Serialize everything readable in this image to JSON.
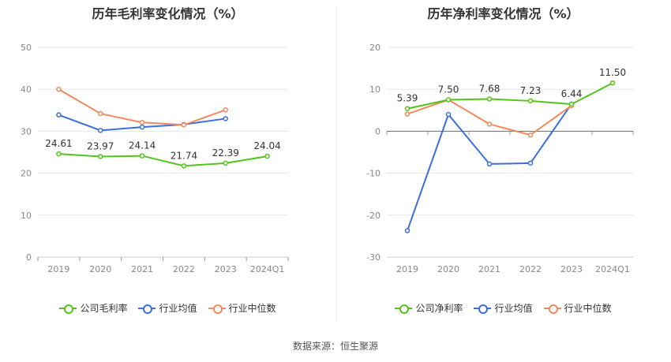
{
  "source_label": "数据来源：恒生聚源",
  "colors": {
    "company": "#52c41a",
    "industry_avg": "#3b6fe0",
    "industry_median": "#f08a5d"
  },
  "chart_data": [
    {
      "type": "line",
      "title": "历年毛利率变化情况（%）",
      "categories": [
        "2019",
        "2020",
        "2021",
        "2022",
        "2023",
        "2024Q1"
      ],
      "ylim": [
        0,
        50
      ],
      "yticks": [
        0,
        10,
        20,
        30,
        40,
        50
      ],
      "grid": true,
      "legend_position": "bottom",
      "series": [
        {
          "name": "公司毛利率",
          "key": "company",
          "values": [
            24.61,
            23.97,
            24.14,
            21.74,
            22.39,
            24.04
          ],
          "labels": [
            "24.61",
            "23.97",
            "24.14",
            "21.74",
            "22.39",
            "24.04"
          ]
        },
        {
          "name": "行业均值",
          "key": "industry_avg",
          "values": [
            33.9,
            30.2,
            31.0,
            31.6,
            33.0,
            null
          ]
        },
        {
          "name": "行业中位数",
          "key": "industry_median",
          "values": [
            40.0,
            34.2,
            32.1,
            31.5,
            35.1,
            null
          ]
        }
      ]
    },
    {
      "type": "line",
      "title": "历年净利率变化情况（%）",
      "categories": [
        "2019",
        "2020",
        "2021",
        "2022",
        "2023",
        "2024Q1"
      ],
      "ylim": [
        -30,
        20
      ],
      "yticks": [
        -30,
        -20,
        -10,
        0,
        10,
        20
      ],
      "grid": true,
      "legend_position": "bottom",
      "series": [
        {
          "name": "公司净利率",
          "key": "company",
          "values": [
            5.39,
            7.5,
            7.68,
            7.23,
            6.44,
            11.5
          ],
          "labels": [
            "5.39",
            "7.50",
            "7.68",
            "7.23",
            "6.44",
            "11.50"
          ]
        },
        {
          "name": "行业均值",
          "key": "industry_avg",
          "values": [
            -23.7,
            4.0,
            -7.8,
            -7.6,
            6.5,
            null
          ]
        },
        {
          "name": "行业中位数",
          "key": "industry_median",
          "values": [
            4.1,
            7.5,
            1.7,
            -0.9,
            6.1,
            null
          ]
        }
      ]
    }
  ]
}
